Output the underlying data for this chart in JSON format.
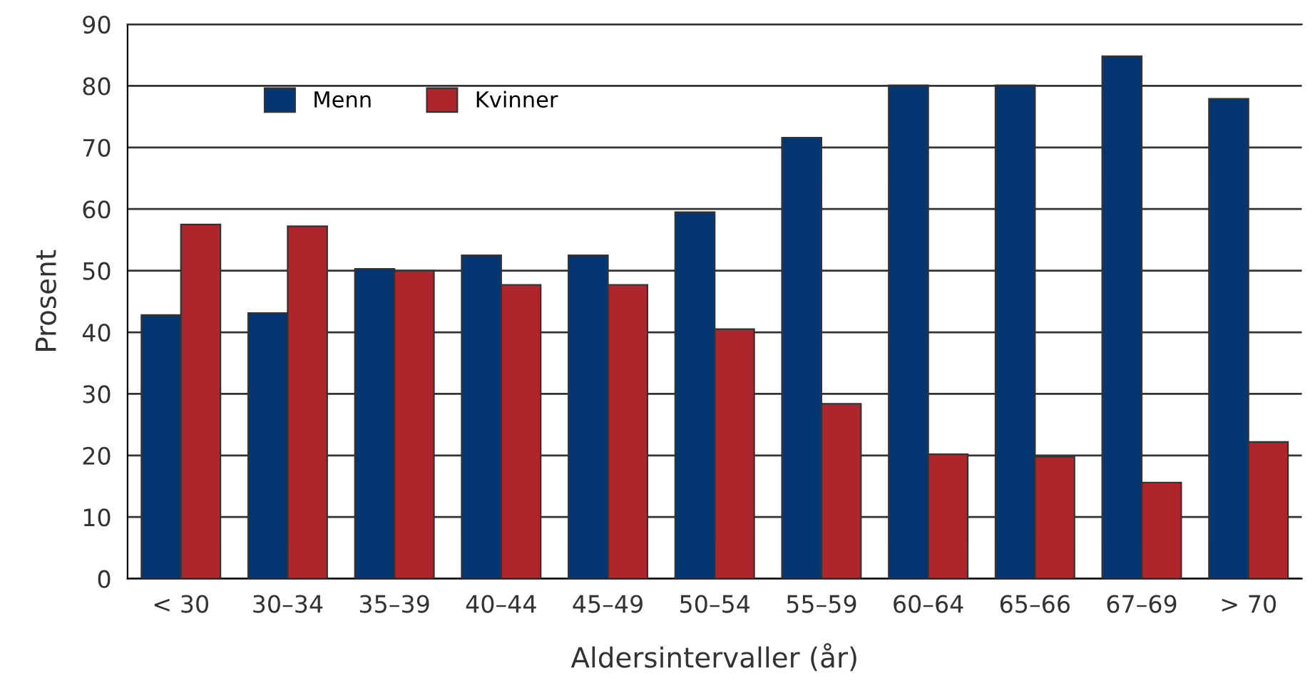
{
  "chart_data": {
    "type": "bar",
    "xlabel": "Aldersintervaller (år)",
    "ylabel": "Prosent",
    "categories": [
      "< 30",
      "30–34",
      "35–39",
      "40–44",
      "45–49",
      "50–54",
      "55–59",
      "60–64",
      "65–66",
      "67–69",
      "> 70"
    ],
    "series": [
      {
        "name": "Menn",
        "color": "#053674",
        "values": [
          42.8,
          43.1,
          50.3,
          52.5,
          52.5,
          59.5,
          71.6,
          80.1,
          80.1,
          84.8,
          77.9
        ]
      },
      {
        "name": "Kvinner",
        "color": "#ae262c",
        "values": [
          57.5,
          57.2,
          50.0,
          47.7,
          47.7,
          40.5,
          28.4,
          20.2,
          19.8,
          15.6,
          22.2
        ]
      }
    ],
    "ylim": [
      0,
      90
    ],
    "yticks": [
      0,
      10,
      20,
      30,
      40,
      50,
      60,
      70,
      80,
      90
    ],
    "grid": "y",
    "legend": "top left"
  }
}
